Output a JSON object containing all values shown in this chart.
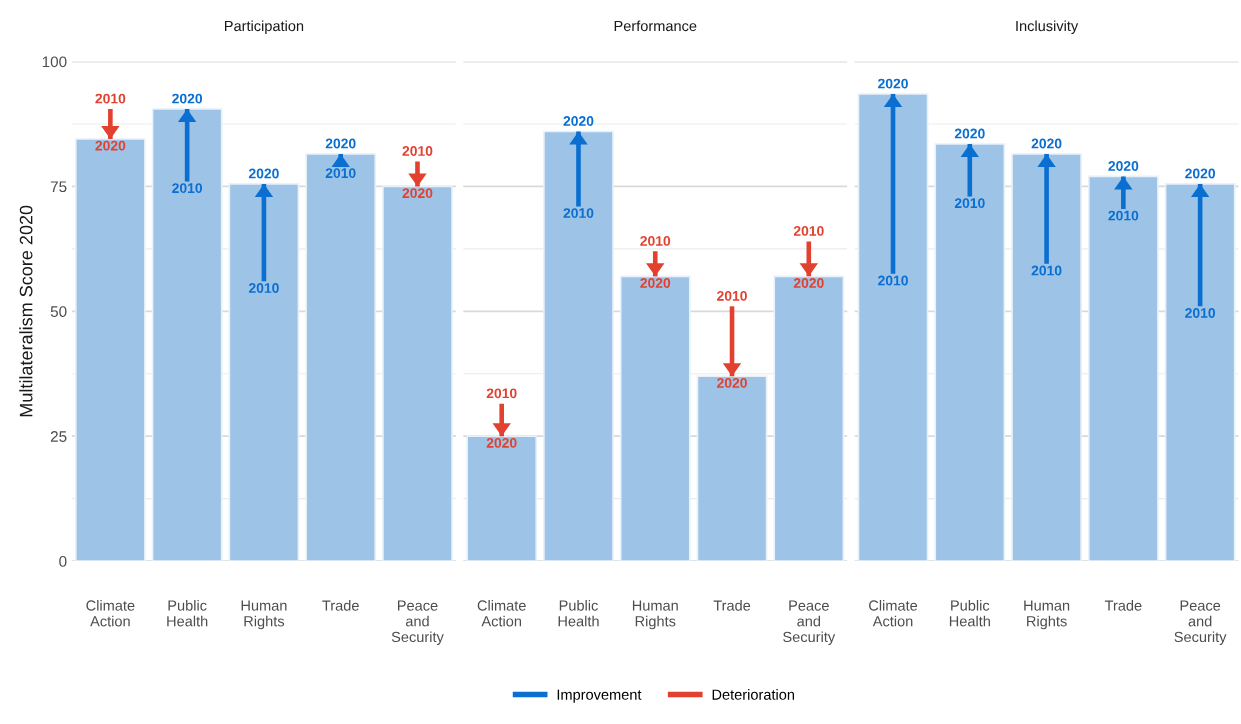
{
  "chart_data": [
    {
      "type": "bar",
      "title": "Participation",
      "ylabel": "Multilateralism Score 2020",
      "categories": [
        "Climate\nAction",
        "Public\nHealth",
        "Human\nRights",
        "Trade",
        "Peace\nand\nSecurity"
      ],
      "ylim": [
        0,
        100
      ],
      "yticks": [
        0,
        25,
        50,
        75,
        100
      ],
      "grid": "y",
      "series": [
        {
          "color": "#9dc3e6",
          "values": [
            84.5,
            90.5,
            75.5,
            81.5,
            75
          ]
        },
        {
          "color": "#0a6fd1",
          "base": [
            null,
            76,
            56,
            79,
            null
          ],
          "values": [
            null,
            14.5,
            19.5,
            2.5,
            null
          ]
        },
        {
          "color": "#e2412f",
          "base": [
            90.5,
            null,
            null,
            null,
            80
          ],
          "values": [
            -6,
            null,
            null,
            null,
            -5
          ]
        }
      ],
      "annotations": [
        {
          "text": "2010",
          "x": "Climate\nAction",
          "y": 90.5
        },
        {
          "text": "2020",
          "x": "Climate\nAction",
          "y": 84.5
        },
        {
          "text": "2010",
          "x": "Public\nHealth",
          "y": 76
        },
        {
          "text": "2020",
          "x": "Public\nHealth",
          "y": 90.5
        },
        {
          "text": "2010",
          "x": "Human\nRights",
          "y": 56
        },
        {
          "text": "2020",
          "x": "Human\nRights",
          "y": 75.5
        },
        {
          "text": "2010",
          "x": "Trade",
          "y": 79
        },
        {
          "text": "2020",
          "x": "Trade",
          "y": 81.5
        },
        {
          "text": "2010",
          "x": "Peace\nand\nSecurity",
          "y": 80
        },
        {
          "text": "2020",
          "x": "Peace\nand\nSecurity",
          "y": 75
        }
      ]
    },
    {
      "type": "bar",
      "title": "Performance",
      "categories": [
        "Climate\nAction",
        "Public\nHealth",
        "Human\nRights",
        "Trade",
        "Peace\nand\nSecurity"
      ],
      "ylim": [
        0,
        100
      ],
      "yticks": [
        0,
        25,
        50,
        75,
        100
      ],
      "grid": "y",
      "tick_labels": "x",
      "legend": "bottom",
      "series": [
        {
          "color": "#9dc3e6",
          "values": [
            25,
            86,
            57,
            37,
            57
          ]
        },
        {
          "name": "Improvement",
          "color": "#0a6fd1",
          "base": [
            null,
            71,
            null,
            null,
            null
          ],
          "values": [
            null,
            15,
            null,
            null,
            null
          ]
        },
        {
          "name": "Deterioration",
          "color": "#e2412f",
          "base": [
            31.5,
            null,
            62,
            51,
            64
          ],
          "values": [
            -6.5,
            null,
            -5,
            -14,
            -7
          ]
        }
      ],
      "annotations": [
        {
          "text": "2010",
          "x": "Climate\nAction",
          "y": 31.5
        },
        {
          "text": "2020",
          "x": "Climate\nAction",
          "y": 25
        },
        {
          "text": "2010",
          "x": "Public\nHealth",
          "y": 71
        },
        {
          "text": "2020",
          "x": "Public\nHealth",
          "y": 86
        },
        {
          "text": "2010",
          "x": "Human\nRights",
          "y": 62
        },
        {
          "text": "2020",
          "x": "Human\nRights",
          "y": 57
        },
        {
          "text": "2010",
          "x": "Trade",
          "y": 51
        },
        {
          "text": "2020",
          "x": "Trade",
          "y": 37
        },
        {
          "text": "2010",
          "x": "Peace\nand\nSecurity",
          "y": 64
        },
        {
          "text": "2020",
          "x": "Peace\nand\nSecurity",
          "y": 57
        }
      ]
    },
    {
      "type": "bar",
      "title": "Inclusivity",
      "categories": [
        "Climate\nAction",
        "Public\nHealth",
        "Human\nRights",
        "Trade",
        "Peace\nand\nSecurity"
      ],
      "ylim": [
        0,
        100
      ],
      "yticks": [
        0,
        25,
        50,
        75,
        100
      ],
      "grid": "y",
      "tick_labels": "x",
      "series": [
        {
          "color": "#9dc3e6",
          "values": [
            93.5,
            83.5,
            81.5,
            77,
            75.5
          ]
        },
        {
          "color": "#0a6fd1",
          "base": [
            57.5,
            73,
            59.5,
            70.5,
            51
          ],
          "values": [
            36,
            10.5,
            22,
            6.5,
            24.5
          ]
        }
      ],
      "annotations": [
        {
          "text": "2010",
          "x": "Climate\nAction",
          "y": 57.5
        },
        {
          "text": "2020",
          "x": "Climate\nAction",
          "y": 93.5
        },
        {
          "text": "2010",
          "x": "Public\nHealth",
          "y": 73
        },
        {
          "text": "2020",
          "x": "Public\nHealth",
          "y": 83.5
        },
        {
          "text": "2010",
          "x": "Human\nRights",
          "y": 59.5
        },
        {
          "text": "2020",
          "x": "Human\nRights",
          "y": 81.5
        },
        {
          "text": "2010",
          "x": "Trade",
          "y": 70.5
        },
        {
          "text": "2020",
          "x": "Trade",
          "y": 77
        },
        {
          "text": "2010",
          "x": "Peace\nand\nSecurity",
          "y": 51
        },
        {
          "text": "2020",
          "x": "Peace\nand\nSecurity",
          "y": 75.5
        }
      ]
    }
  ]
}
